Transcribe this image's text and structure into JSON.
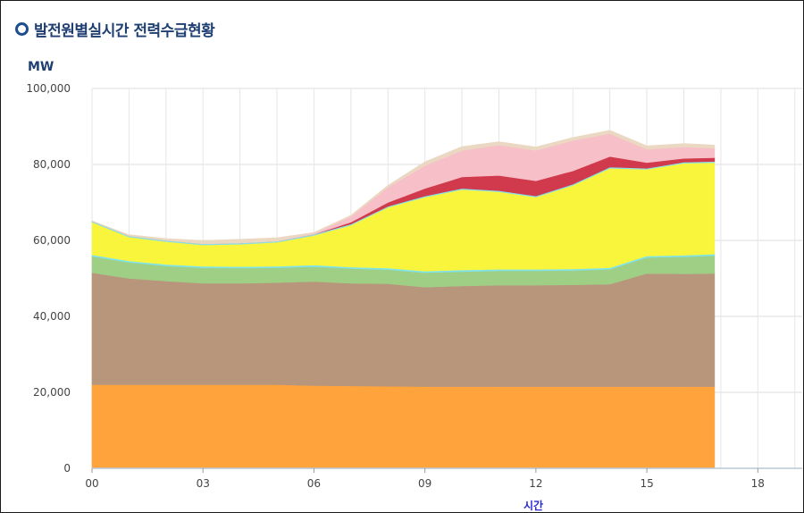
{
  "title": "발전원별실시간 전력수급현황",
  "chart_data": {
    "type": "area",
    "stacked": true,
    "ylabel": "MW",
    "xlabel": "시간",
    "ylim": [
      0,
      100000
    ],
    "xlim": [
      0,
      19.2
    ],
    "y_ticks": [
      0,
      20000,
      40000,
      60000,
      80000,
      100000
    ],
    "y_tick_labels": [
      "0",
      "20,000",
      "40,000",
      "60,000",
      "80,000",
      "100,000"
    ],
    "x_ticks": [
      0,
      3,
      6,
      9,
      12,
      15,
      18
    ],
    "x_tick_labels": [
      "00",
      "03",
      "06",
      "09",
      "12",
      "15",
      "18"
    ],
    "grid": true,
    "legend": "none",
    "x": [
      0,
      1,
      2,
      3,
      4,
      5,
      6,
      7,
      8,
      9,
      10,
      11,
      12,
      13,
      14,
      15,
      16,
      16.83
    ],
    "series": [
      {
        "color": "#ffa43c",
        "values": [
          22000,
          22000,
          22000,
          22000,
          22000,
          22000,
          21800,
          21700,
          21600,
          21500,
          21500,
          21500,
          21500,
          21500,
          21500,
          21500,
          21500,
          21500
        ]
      },
      {
        "color": "#b8967c",
        "values": [
          29500,
          28000,
          27300,
          26700,
          26700,
          26900,
          27400,
          27000,
          27000,
          26200,
          26500,
          26700,
          26700,
          26800,
          27000,
          29800,
          29700,
          29800
        ]
      },
      {
        "color": "#9fcf85",
        "values": [
          4300,
          4200,
          4000,
          4100,
          4000,
          3900,
          3900,
          3900,
          3700,
          3800,
          3800,
          3800,
          3800,
          3800,
          3900,
          4200,
          4500,
          4700
        ]
      },
      {
        "color": "#7fe3ec",
        "values": [
          400,
          400,
          400,
          400,
          400,
          400,
          400,
          400,
          400,
          400,
          400,
          400,
          400,
          400,
          400,
          400,
          400,
          400
        ]
      },
      {
        "color": "#f8f53c",
        "values": [
          8600,
          6300,
          6000,
          5600,
          5900,
          6300,
          7800,
          11000,
          16000,
          19500,
          21200,
          20400,
          19000,
          22000,
          26200,
          22800,
          24200,
          24100
        ]
      },
      {
        "color": "#86e0ea",
        "values": [
          300,
          300,
          300,
          300,
          300,
          300,
          300,
          300,
          300,
          300,
          300,
          300,
          300,
          300,
          300,
          300,
          300,
          300
        ]
      },
      {
        "color": "#d03a4c",
        "values": [
          0,
          0,
          0,
          0,
          0,
          0,
          0,
          500,
          1000,
          2000,
          3000,
          4000,
          4000,
          3500,
          2800,
          1500,
          1000,
          1000
        ]
      },
      {
        "color": "#f7c0c8",
        "values": [
          0,
          0,
          0,
          0,
          0,
          0,
          200,
          1500,
          4000,
          6000,
          7000,
          8000,
          8000,
          8000,
          6000,
          3500,
          3000,
          2500
        ]
      },
      {
        "color": "#ebd8c2",
        "values": [
          0,
          300,
          500,
          900,
          1000,
          900,
          300,
          300,
          500,
          1000,
          1000,
          900,
          900,
          800,
          900,
          900,
          900,
          800
        ]
      }
    ]
  }
}
